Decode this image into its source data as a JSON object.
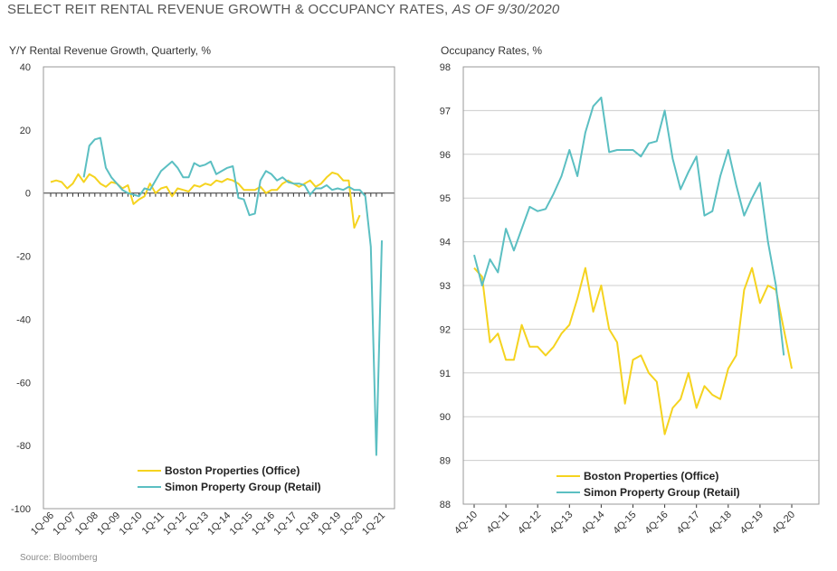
{
  "header": {
    "title": "SELECT REIT RENTAL REVENUE GROWTH & OCCUPANCY RATES,",
    "as_of": "AS OF 9/30/2020"
  },
  "footer": {
    "source": "Source: Bloomberg"
  },
  "colors": {
    "boston": "#F5D31F",
    "simon": "#5BBFC2",
    "frame": "#999999",
    "grid": "#cccccc"
  },
  "chart_data": [
    {
      "type": "line",
      "ylabel": "Y/Y Rental Revenue Growth, Quarterly, %",
      "ylim": [
        -100,
        40
      ],
      "yticks": [
        40,
        20,
        0,
        -20,
        -40,
        -60,
        -80,
        -100
      ],
      "xlabels": [
        "1Q-06",
        "1Q-07",
        "1Q-08",
        "1Q-09",
        "1Q-10",
        "1Q-11",
        "1Q-12",
        "1Q-13",
        "1Q-14",
        "1Q-15",
        "1Q-16",
        "1Q-17",
        "1Q-18",
        "1Q-19",
        "1Q-20",
        "1Q-21"
      ],
      "grid": false,
      "legend": "bottom-center",
      "series": [
        {
          "name": "Boston Properties (Office)",
          "color": "#F5D31F",
          "start_quarter": 0,
          "values": [
            3.5,
            4,
            3.5,
            1.5,
            3,
            6,
            3.5,
            6,
            5,
            3,
            2,
            3.5,
            3,
            1.5,
            2.5,
            -3.5,
            -2,
            -1,
            3,
            0,
            1.5,
            2,
            -1,
            1.5,
            1,
            0.5,
            2.5,
            2,
            3,
            2.5,
            4,
            3.5,
            4.5,
            4,
            3,
            1,
            1,
            1,
            2,
            0,
            1,
            1,
            3,
            4,
            3,
            2,
            3,
            4,
            2,
            3,
            5,
            6.5,
            6,
            4,
            4,
            -11,
            -7
          ]
        },
        {
          "name": "Simon Property Group (Retail)",
          "color": "#5BBFC2",
          "start_quarter": 6,
          "values": [
            5,
            15,
            17,
            17.5,
            8,
            5,
            3,
            1,
            0,
            -0.5,
            -1,
            1.5,
            1,
            4,
            7,
            8.5,
            10,
            8,
            5,
            5,
            9.5,
            8.5,
            9,
            10,
            6,
            7,
            8,
            8.5,
            -1.5,
            -2,
            -7,
            -6.5,
            4,
            7,
            6,
            4,
            5,
            3.5,
            3,
            3,
            2.5,
            -0.5,
            1.5,
            1.5,
            2.5,
            1,
            1.5,
            1,
            2,
            1,
            1,
            -1,
            -17,
            -83,
            -15
          ]
        }
      ]
    },
    {
      "type": "line",
      "ylabel": "Occupancy Rates, %",
      "ylim": [
        88,
        98
      ],
      "yticks": [
        98,
        97,
        96,
        95,
        94,
        93,
        92,
        91,
        90,
        89,
        88
      ],
      "xlabels": [
        "4Q-10",
        "4Q-11",
        "4Q-12",
        "4Q-13",
        "4Q-14",
        "4Q-15",
        "4Q-16",
        "4Q-17",
        "4Q-18",
        "4Q-19",
        "4Q-20"
      ],
      "grid": true,
      "legend": "bottom-center",
      "series": [
        {
          "name": "Boston Properties (Office)",
          "color": "#F5D31F",
          "values": [
            93.4,
            93.2,
            91.7,
            91.9,
            91.3,
            91.3,
            92.1,
            91.6,
            91.6,
            91.4,
            91.6,
            91.9,
            92.1,
            92.7,
            93.4,
            92.4,
            93,
            92,
            91.7,
            90.3,
            91.3,
            91.4,
            91,
            90.8,
            89.6,
            90.2,
            90.4,
            91,
            90.2,
            90.7,
            90.5,
            90.4,
            91.1,
            91.4,
            92.9,
            93.4,
            92.6,
            93,
            92.9,
            92,
            91.1
          ]
        },
        {
          "name": "Simon Property Group (Retail)",
          "color": "#5BBFC2",
          "values": [
            93.7,
            93,
            93.6,
            93.3,
            94.3,
            93.8,
            94.3,
            94.8,
            94.7,
            94.75,
            95.1,
            95.5,
            96.1,
            95.5,
            96.5,
            97.1,
            97.3,
            96.05,
            96.1,
            96.1,
            96.1,
            95.95,
            96.25,
            96.3,
            97,
            95.9,
            95.2,
            95.6,
            95.95,
            94.6,
            94.7,
            95.5,
            96.1,
            95.3,
            94.6,
            95,
            95.35,
            94,
            93,
            91.4
          ]
        }
      ]
    }
  ]
}
